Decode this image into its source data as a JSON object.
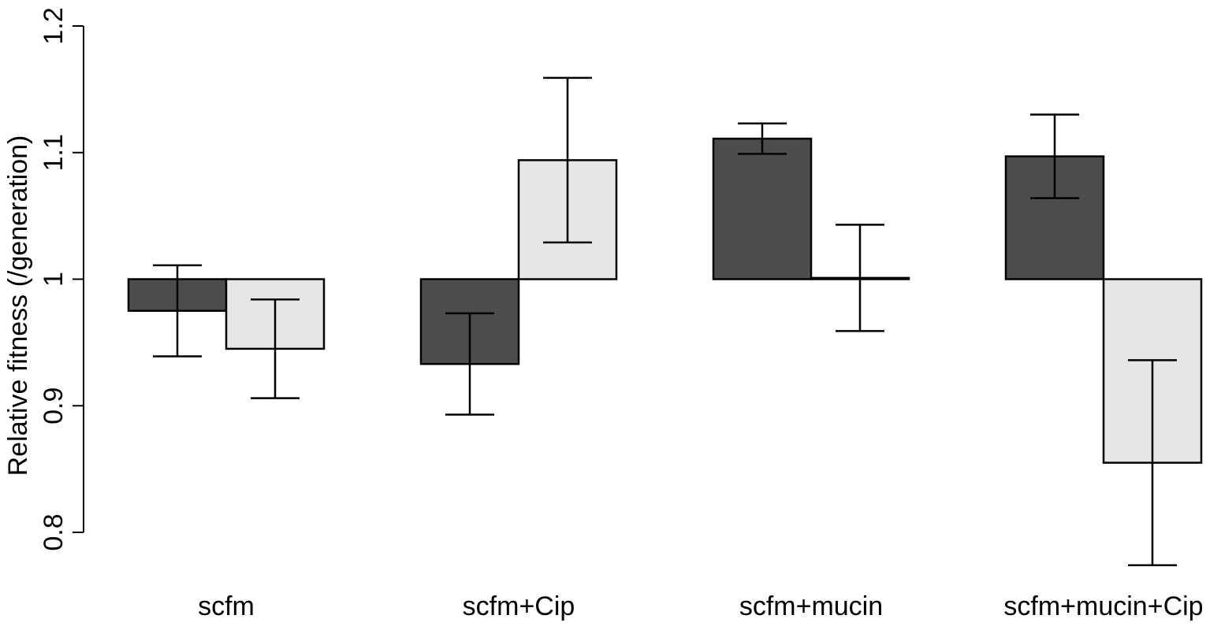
{
  "chart_data": {
    "type": "bar",
    "y_label": "Relative fitness (/generation)",
    "categories": [
      "scfm",
      "scfm+Cip",
      "scfm+mucin",
      "scfm+mucin+Cip"
    ],
    "baseline": 1,
    "series": [
      {
        "color": "#4d4d4d",
        "values": [
          0.975,
          0.933,
          1.111,
          1.097
        ],
        "errors": [
          0.036,
          0.04,
          0.012,
          0.033
        ]
      },
      {
        "color": "#e6e6e6",
        "values": [
          0.945,
          1.094,
          1.001,
          0.855
        ],
        "errors": [
          0.039,
          0.065,
          0.042,
          0.081
        ]
      }
    ],
    "ylim": [
      0.8,
      1.2
    ],
    "yticks": [
      0.8,
      0.9,
      1,
      1.1,
      1.2
    ]
  }
}
